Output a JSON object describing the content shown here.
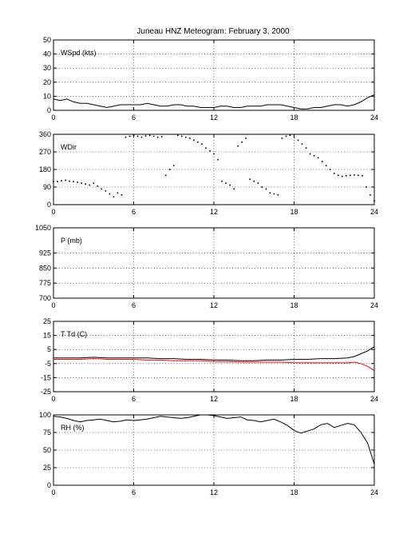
{
  "title": "Juneau HNZ Meteogram:  February  3, 2000",
  "x_ticks": [
    "0",
    "6",
    "12",
    "18",
    "24"
  ],
  "chart_data": [
    {
      "type": "line",
      "label": "WSpd (kts)",
      "xlim": [
        0,
        24
      ],
      "ylim": [
        0,
        50
      ],
      "y_ticks": [
        "0",
        "10",
        "20",
        "30",
        "40",
        "50"
      ],
      "grid": true,
      "series": [
        {
          "color": "#000000",
          "style": "line",
          "x": [
            0,
            0.5,
            1,
            1.5,
            2,
            2.5,
            3,
            3.5,
            4,
            4.5,
            5,
            5.5,
            6,
            6.5,
            7,
            7.5,
            8,
            8.5,
            9,
            9.5,
            10,
            10.5,
            11,
            11.5,
            12,
            12.5,
            13,
            13.5,
            14,
            14.5,
            15,
            15.5,
            16,
            16.5,
            17,
            17.5,
            18,
            18.5,
            19,
            19.5,
            20,
            20.5,
            21,
            21.5,
            22,
            22.5,
            23,
            23.5,
            24
          ],
          "y": [
            8,
            7,
            8,
            6,
            5,
            5,
            4,
            3,
            2,
            3,
            4,
            4,
            4,
            4,
            5,
            4,
            3,
            3,
            4,
            4,
            3,
            3,
            2,
            2,
            2,
            3,
            3,
            2,
            2,
            3,
            3,
            3,
            4,
            4,
            4,
            3,
            2,
            1,
            1,
            2,
            2,
            3,
            4,
            4,
            3,
            4,
            6,
            9,
            11
          ]
        }
      ]
    },
    {
      "type": "scatter",
      "label": "WDir",
      "xlim": [
        0,
        24
      ],
      "ylim": [
        0,
        360
      ],
      "y_ticks": [
        "0",
        "90",
        "180",
        "270",
        "360"
      ],
      "grid": true,
      "series": [
        {
          "color": "#000000",
          "style": "dots",
          "x": [
            0,
            0.3,
            0.6,
            0.9,
            1.2,
            1.5,
            1.8,
            2.1,
            2.4,
            2.7,
            3.0,
            3.3,
            3.6,
            3.9,
            4.2,
            4.5,
            4.8,
            5.1,
            5.4,
            5.7,
            6.0,
            6.3,
            6.6,
            6.9,
            7.2,
            7.5,
            7.8,
            8.1,
            8.4,
            8.7,
            9.0,
            9.3,
            9.6,
            9.9,
            10.2,
            10.5,
            10.8,
            11.1,
            11.4,
            11.7,
            12.0,
            12.3,
            12.6,
            12.9,
            13.2,
            13.5,
            13.8,
            14.1,
            14.4,
            14.7,
            15.0,
            15.3,
            15.6,
            15.9,
            16.2,
            16.5,
            16.8,
            17.1,
            17.4,
            17.7,
            18.0,
            18.3,
            18.6,
            18.9,
            19.2,
            19.5,
            19.8,
            20.1,
            20.4,
            20.7,
            21.0,
            21.3,
            21.6,
            21.9,
            22.2,
            22.5,
            22.8,
            23.1,
            23.4,
            23.7,
            24.0
          ],
          "y": [
            120,
            118,
            122,
            125,
            120,
            118,
            115,
            110,
            105,
            100,
            110,
            95,
            80,
            70,
            55,
            40,
            60,
            50,
            345,
            350,
            355,
            350,
            345,
            352,
            355,
            350,
            345,
            348,
            150,
            180,
            200,
            355,
            350,
            345,
            340,
            330,
            320,
            310,
            290,
            275,
            260,
            230,
            120,
            110,
            100,
            80,
            300,
            320,
            340,
            130,
            120,
            110,
            90,
            80,
            60,
            55,
            50,
            340,
            350,
            355,
            345,
            330,
            310,
            290,
            260,
            250,
            240,
            220,
            200,
            180,
            160,
            150,
            145,
            148,
            150,
            152,
            150,
            148,
            90,
            50,
            20
          ]
        }
      ]
    },
    {
      "type": "line",
      "label": "P (mb)",
      "xlim": [
        0,
        24
      ],
      "ylim": [
        700,
        1050
      ],
      "y_ticks": [
        "700",
        "775",
        "850",
        "925",
        "1050"
      ],
      "y_tick_values": [
        700,
        775,
        850,
        925,
        1050
      ],
      "grid": true,
      "series": []
    },
    {
      "type": "line",
      "label": "T Td (C)",
      "xlim": [
        0,
        24
      ],
      "ylim": [
        -25,
        25
      ],
      "y_ticks": [
        "-25",
        "-15",
        "-5",
        "5",
        "15",
        "25"
      ],
      "grid": true,
      "series": [
        {
          "color": "#000000",
          "style": "line",
          "x": [
            0,
            1,
            2,
            3,
            4,
            5,
            6,
            7,
            8,
            9,
            10,
            11,
            12,
            13,
            14,
            15,
            16,
            17,
            18,
            19,
            20,
            21,
            22,
            22.5,
            23,
            23.5,
            24
          ],
          "y": [
            -1,
            -1,
            -1,
            -0.5,
            -1,
            -1,
            -1,
            -1,
            -1.5,
            -1.5,
            -2,
            -2,
            -2.5,
            -2.5,
            -3,
            -3,
            -2.5,
            -2.5,
            -2,
            -2,
            -1.5,
            -1.5,
            -1,
            0,
            2,
            4,
            7
          ]
        },
        {
          "color": "#ff0000",
          "style": "line",
          "x": [
            0,
            1,
            2,
            3,
            4,
            5,
            6,
            7,
            8,
            9,
            10,
            11,
            12,
            13,
            14,
            15,
            16,
            17,
            18,
            19,
            20,
            21,
            22,
            22.5,
            23,
            23.5,
            24
          ],
          "y": [
            -2,
            -2,
            -2,
            -1.5,
            -2,
            -2,
            -2,
            -2.5,
            -2.5,
            -3,
            -3,
            -3,
            -3.5,
            -3.5,
            -4,
            -4,
            -4,
            -4,
            -4.5,
            -4.5,
            -4.5,
            -4.5,
            -4.5,
            -4,
            -5,
            -7,
            -10
          ]
        }
      ]
    },
    {
      "type": "line",
      "label": "RH (%)",
      "xlim": [
        0,
        24
      ],
      "ylim": [
        0,
        100
      ],
      "y_ticks": [
        "0",
        "25",
        "50",
        "75",
        "100"
      ],
      "grid": true,
      "series": [
        {
          "color": "#000000",
          "style": "line",
          "x": [
            0,
            0.5,
            1,
            1.5,
            2,
            2.5,
            3,
            3.5,
            4,
            4.5,
            5,
            5.5,
            6,
            6.5,
            7,
            7.5,
            8,
            8.5,
            9,
            9.5,
            10,
            10.5,
            11,
            11.5,
            12,
            12.5,
            13,
            13.5,
            14,
            14.5,
            15,
            15.5,
            16,
            16.5,
            17,
            17.5,
            18,
            18.5,
            19,
            19.5,
            20,
            20.5,
            21,
            21.5,
            22,
            22.5,
            23,
            23.5,
            24
          ],
          "y": [
            98,
            97,
            95,
            92,
            90,
            92,
            93,
            94,
            92,
            90,
            91,
            93,
            92,
            93,
            94,
            96,
            98,
            97,
            96,
            95,
            96,
            98,
            100,
            100,
            99,
            97,
            95,
            96,
            97,
            93,
            92,
            90,
            92,
            94,
            90,
            85,
            78,
            74,
            77,
            80,
            86,
            88,
            82,
            85,
            88,
            86,
            75,
            60,
            30
          ]
        }
      ]
    }
  ]
}
